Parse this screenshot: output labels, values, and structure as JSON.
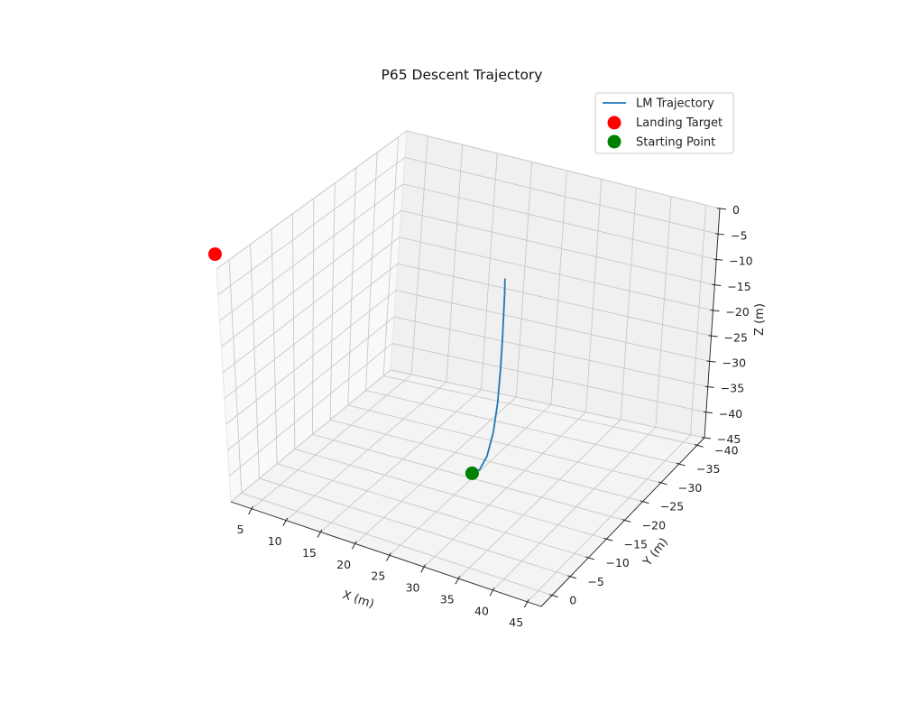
{
  "chart_data": {
    "type": "line3d",
    "title": "P65 Descent Trajectory",
    "xlabel": "X (m)",
    "ylabel": "Y (m)",
    "zlabel": "Z (m)",
    "x_ticks": [
      "5",
      "10",
      "15",
      "20",
      "25",
      "30",
      "35",
      "40",
      "45"
    ],
    "y_ticks": [
      "0",
      "−5",
      "−10",
      "−15",
      "−20",
      "−25",
      "−30",
      "−35",
      "−40"
    ],
    "z_ticks": [
      "0",
      "−5",
      "−10",
      "−15",
      "−20",
      "−25",
      "−30",
      "−35",
      "−40",
      "−45"
    ],
    "xlim": [
      2,
      47
    ],
    "ylim": [
      -42,
      3
    ],
    "zlim": [
      -45,
      0
    ],
    "grid": true,
    "legend_position": "top-right",
    "series": [
      {
        "name": "LM Trajectory",
        "kind": "line",
        "color": "#1f77b4",
        "x": [
          25,
          26,
          27,
          27.8,
          28.3,
          28.6,
          28.8,
          28.9,
          29,
          29
        ],
        "y": [
          -20,
          -20.1,
          -20.2,
          -20.3,
          -20.4,
          -20.5,
          -20.5,
          -20.5,
          -20.5,
          -20.5
        ],
        "z": [
          -44,
          -43,
          -40,
          -35,
          -29,
          -22,
          -16,
          -11,
          -7,
          -4
        ]
      },
      {
        "name": "Landing Target",
        "kind": "scatter",
        "color": "#ff0000",
        "x": [
          0
        ],
        "y": [
          0
        ],
        "z": [
          0
        ]
      },
      {
        "name": "Starting Point",
        "kind": "scatter",
        "color": "#008000",
        "x": [
          25
        ],
        "y": [
          -20
        ],
        "z": [
          -44
        ]
      }
    ]
  }
}
